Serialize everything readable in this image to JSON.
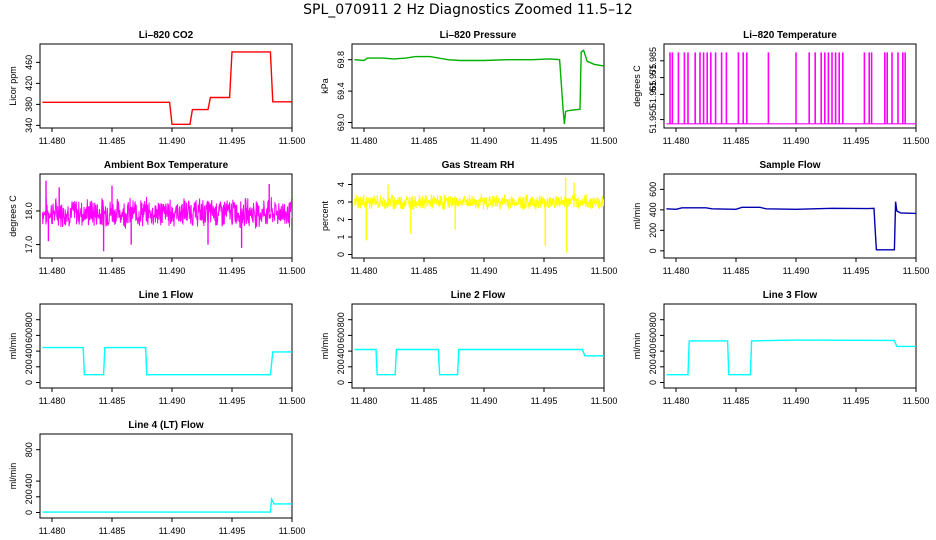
{
  "main_title": "SPL_070911  2 Hz Diagnostics Zoomed 11.5–12",
  "chart_data": [
    {
      "type": "line",
      "title": "Li–820 CO2",
      "ylabel": "Licor ppm",
      "color": "#ff0000",
      "xlim": [
        11.479,
        11.5
      ],
      "ylim": [
        335,
        495
      ],
      "xticks": [
        "11.480",
        "11.485",
        "11.490",
        "11.495",
        "11.500"
      ],
      "yticks": [
        340,
        380,
        420,
        460
      ],
      "series": [
        {
          "x": [
            11.4792,
            11.4898,
            11.49,
            11.4915,
            11.4917,
            11.493,
            11.4932,
            11.4948,
            11.495,
            11.4982,
            11.4984,
            11.5
          ],
          "y": [
            384,
            384,
            342,
            342,
            370,
            370,
            393,
            393,
            480,
            480,
            385,
            385
          ]
        }
      ]
    },
    {
      "type": "line",
      "title": "Li–820 Pressure",
      "ylabel": "kPa",
      "color": "#00b000",
      "xlim": [
        11.479,
        11.5
      ],
      "ylim": [
        68.93,
        70.0
      ],
      "xticks": [
        "11.480",
        "11.485",
        "11.490",
        "11.495",
        "11.500"
      ],
      "yticks": [
        "69.0",
        "69.4",
        "69.8"
      ],
      "series": [
        {
          "x": [
            11.4792,
            11.48,
            11.4803,
            11.4815,
            11.4825,
            11.4835,
            11.4843,
            11.4855,
            11.487,
            11.488,
            11.49,
            11.492,
            11.494,
            11.4955,
            11.4963,
            11.4966,
            11.4967,
            11.4968,
            11.497,
            11.498,
            11.4981,
            11.4983,
            11.4986,
            11.4992,
            11.5
          ],
          "y": [
            69.8,
            69.79,
            69.82,
            69.82,
            69.81,
            69.82,
            69.84,
            69.84,
            69.8,
            69.79,
            69.79,
            69.8,
            69.8,
            69.81,
            69.8,
            69.15,
            68.98,
            69.14,
            69.15,
            69.17,
            69.9,
            69.92,
            69.78,
            69.74,
            69.72
          ]
        }
      ]
    },
    {
      "type": "line",
      "title": "Li–820 Temperature",
      "ylabel": "degrees C",
      "color": "#ff00ff",
      "xlim": [
        11.479,
        11.5
      ],
      "ylim": [
        51.945,
        51.995
      ],
      "xticks": [
        "11.480",
        "11.485",
        "11.490",
        "11.495",
        "11.500"
      ],
      "yticks": [
        "51.950",
        "51.965",
        "51.975",
        "51.985"
      ],
      "baseline": 51.9475,
      "spike_top": 51.99,
      "spikes": [
        11.4795,
        11.4797,
        11.4802,
        11.4807,
        11.481,
        11.4816,
        11.482,
        11.4823,
        11.4826,
        11.4829,
        11.4833,
        11.4838,
        11.4842,
        11.4852,
        11.4856,
        11.4859,
        11.4877,
        11.49,
        11.4911,
        11.4916,
        11.4921,
        11.4924,
        11.4927,
        11.493,
        11.4933,
        11.4936,
        11.4939,
        11.4957,
        11.4961,
        11.4963,
        11.4974,
        11.4976,
        11.498,
        11.4985,
        11.4989,
        11.4991
      ]
    },
    {
      "type": "line",
      "title": "Ambient Box Temperature",
      "ylabel": "degrees C",
      "color": "#ff00ff",
      "xlim": [
        11.479,
        11.5
      ],
      "ylim": [
        16.6,
        19.1
      ],
      "xticks": [
        "11.480",
        "11.485",
        "11.490",
        "11.495",
        "11.500"
      ],
      "yticks": [
        "17.0",
        "18.0"
      ],
      "noise": {
        "mean": 17.95,
        "amp": 0.35,
        "min": 16.8,
        "max": 18.95,
        "spike_down": [
          [
            11.4797,
            17.1
          ],
          [
            11.4843,
            16.8
          ],
          [
            11.4866,
            17.0
          ],
          [
            11.493,
            17.0
          ],
          [
            11.4958,
            16.9
          ]
        ],
        "spike_up": [
          [
            11.4795,
            18.9
          ],
          [
            11.4806,
            18.7
          ],
          [
            11.485,
            18.75
          ],
          [
            11.4981,
            18.8
          ]
        ]
      }
    },
    {
      "type": "line",
      "title": "Gas Stream RH",
      "ylabel": "percent",
      "color": "#ffff00",
      "xlim": [
        11.479,
        11.5
      ],
      "ylim": [
        -0.2,
        4.6
      ],
      "xticks": [
        "11.480",
        "11.485",
        "11.490",
        "11.495",
        "11.500"
      ],
      "yticks": [
        0,
        1,
        2,
        3,
        4
      ],
      "noise": {
        "mean": 3.0,
        "amp": 0.35,
        "min": 0.5,
        "max": 4.4,
        "spike_down": [
          [
            11.4802,
            0.8
          ],
          [
            11.4839,
            1.2
          ],
          [
            11.4876,
            1.4
          ],
          [
            11.4951,
            0.5
          ],
          [
            11.4969,
            0.1
          ]
        ],
        "spike_up": [
          [
            11.482,
            4.0
          ],
          [
            11.4968,
            4.4
          ],
          [
            11.4975,
            4.1
          ]
        ]
      }
    },
    {
      "type": "line",
      "title": "Sample Flow",
      "ylabel": "ml/min",
      "color": "#0000b0",
      "xlim": [
        11.479,
        11.5
      ],
      "ylim": [
        -70,
        750
      ],
      "xticks": [
        "11.480",
        "11.485",
        "11.490",
        "11.495",
        "11.500"
      ],
      "yticks": [
        0,
        200,
        400,
        600
      ],
      "series": [
        {
          "x": [
            11.4792,
            11.48,
            11.4805,
            11.4825,
            11.483,
            11.485,
            11.4855,
            11.487,
            11.4875,
            11.49,
            11.493,
            11.496,
            11.4965,
            11.4966,
            11.4967,
            11.4982,
            11.4983,
            11.4984,
            11.4987,
            11.5
          ],
          "y": [
            410,
            405,
            420,
            420,
            410,
            405,
            425,
            425,
            410,
            405,
            415,
            412,
            415,
            200,
            10,
            10,
            480,
            390,
            370,
            365
          ]
        }
      ]
    },
    {
      "type": "line",
      "title": "Line 1 Flow",
      "ylabel": "ml/min",
      "color": "#00ffff",
      "xlim": [
        11.479,
        11.5
      ],
      "ylim": [
        -70,
        1000
      ],
      "xticks": [
        "11.480",
        "11.485",
        "11.490",
        "11.495",
        "11.500"
      ],
      "yticks": [
        0,
        200,
        400,
        600,
        800
      ],
      "series": [
        {
          "x": [
            11.4792,
            11.4826,
            11.4827,
            11.4843,
            11.4844,
            11.4878,
            11.4879,
            11.4982,
            11.4984,
            11.5
          ],
          "y": [
            445,
            445,
            100,
            100,
            445,
            445,
            100,
            100,
            390,
            390
          ]
        }
      ]
    },
    {
      "type": "line",
      "title": "Line 2 Flow",
      "ylabel": "ml/min",
      "color": "#00ffff",
      "xlim": [
        11.479,
        11.5
      ],
      "ylim": [
        -70,
        1000
      ],
      "xticks": [
        "11.480",
        "11.485",
        "11.490",
        "11.495",
        "11.500"
      ],
      "yticks": [
        0,
        200,
        400,
        600,
        800
      ],
      "series": [
        {
          "x": [
            11.4792,
            11.481,
            11.4811,
            11.4826,
            11.4827,
            11.4862,
            11.4863,
            11.4878,
            11.4879,
            11.4982,
            11.4984,
            11.5
          ],
          "y": [
            420,
            420,
            100,
            100,
            420,
            420,
            100,
            100,
            420,
            420,
            340,
            340
          ]
        }
      ]
    },
    {
      "type": "line",
      "title": "Line 3 Flow",
      "ylabel": "ml/min",
      "color": "#00ffff",
      "xlim": [
        11.479,
        11.5
      ],
      "ylim": [
        -70,
        1000
      ],
      "xticks": [
        "11.480",
        "11.485",
        "11.490",
        "11.495",
        "11.500"
      ],
      "yticks": [
        0,
        200,
        400,
        600,
        800
      ],
      "series": [
        {
          "x": [
            11.4792,
            11.481,
            11.4811,
            11.4843,
            11.4844,
            11.4862,
            11.4863,
            11.49,
            11.4982,
            11.4984,
            11.5
          ],
          "y": [
            100,
            100,
            530,
            530,
            100,
            100,
            530,
            540,
            535,
            460,
            460
          ]
        }
      ]
    },
    {
      "type": "line",
      "title": "Line 4 (LT) Flow",
      "ylabel": "ml/min",
      "color": "#00ffff",
      "xlim": [
        11.479,
        11.5
      ],
      "ylim": [
        -70,
        1000
      ],
      "xticks": [
        "11.480",
        "11.485",
        "11.490",
        "11.495",
        "11.500"
      ],
      "yticks": [
        0,
        200,
        400,
        800
      ],
      "series": [
        {
          "x": [
            11.4792,
            11.4982,
            11.4983,
            11.4985,
            11.499,
            11.5
          ],
          "y": [
            5,
            5,
            170,
            110,
            110,
            110
          ]
        }
      ]
    }
  ]
}
